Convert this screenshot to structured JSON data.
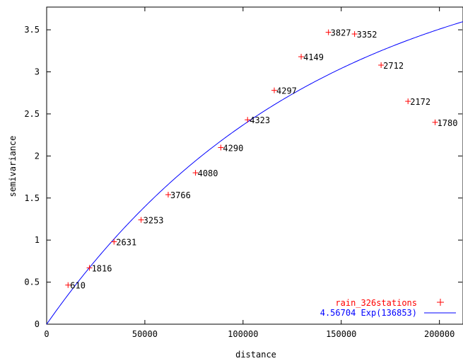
{
  "chart_data": {
    "type": "scatter",
    "xlabel": "distance",
    "ylabel": "semivariance",
    "xlim": [
      0,
      212000
    ],
    "ylim": [
      0,
      3.77
    ],
    "x_ticks": [
      0,
      50000,
      100000,
      150000,
      200000
    ],
    "x_tick_labels": [
      "0",
      "50000",
      "100000",
      "150000",
      "200000"
    ],
    "y_ticks": [
      0,
      0.5,
      1,
      1.5,
      2,
      2.5,
      3,
      3.5
    ],
    "y_tick_labels": [
      "0",
      "0.5",
      "1",
      "1.5",
      "2",
      "2.5",
      "3",
      "3.5"
    ],
    "grid": false,
    "legend_position": "bottom-right",
    "series": [
      {
        "name": "rain_326stations",
        "kind": "points",
        "marker": "plus",
        "color": "#ff0000",
        "x": [
          10900,
          21800,
          34300,
          48100,
          61900,
          75800,
          88700,
          102300,
          115900,
          129600,
          143500,
          156800,
          170300,
          184000,
          197800
        ],
        "y": [
          0.465,
          0.67,
          0.98,
          1.24,
          1.54,
          1.8,
          2.1,
          2.43,
          2.78,
          3.18,
          3.47,
          3.45,
          3.08,
          2.65,
          2.4
        ],
        "labels": [
          "610",
          "1816",
          "2631",
          "3253",
          "3766",
          "4080",
          "4290",
          "4323",
          "4297",
          "4149",
          "3827",
          "3352",
          "2712",
          "2172",
          "1780"
        ]
      },
      {
        "name": "4.56704 Exp(136853)",
        "kind": "model",
        "model": "exponential",
        "sill": 4.56704,
        "range": 136853,
        "color": "#0000ff"
      }
    ]
  }
}
